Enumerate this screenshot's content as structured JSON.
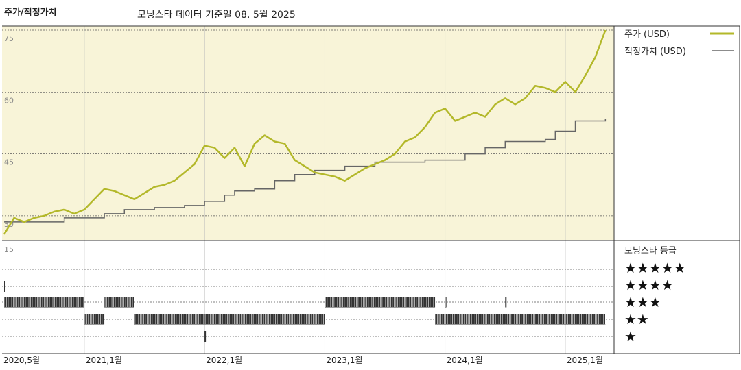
{
  "header": {
    "title": "주가/적정가치",
    "subtitle": "모닝스타 데이터 기준일 08. 5월 2025"
  },
  "colors": {
    "panel_bg": "#f8f4d8",
    "price": "#b3b82a",
    "fair": "#666666",
    "grid_dash": "#555555",
    "grid_solid": "#bbbbbb",
    "bars": "#333333"
  },
  "chart_data": [
    {
      "type": "line",
      "ylim": [
        24,
        76
      ],
      "y_ticks": [
        75,
        60,
        45,
        30
      ],
      "x_ticks": [
        "2020,5월",
        "2021,1월",
        "2022,1월",
        "2023,1월",
        "2024,1월",
        "2025,1월"
      ],
      "x_range": [
        "2020-05",
        "2025-05"
      ],
      "legend_position": "right",
      "series": [
        {
          "name": "주가 (USD)",
          "x": [
            "2020-05",
            "2020-06",
            "2020-07",
            "2020-08",
            "2020-09",
            "2020-10",
            "2020-11",
            "2020-12",
            "2021-01",
            "2021-02",
            "2021-03",
            "2021-04",
            "2021-05",
            "2021-06",
            "2021-07",
            "2021-08",
            "2021-09",
            "2021-10",
            "2021-11",
            "2021-12",
            "2022-01",
            "2022-02",
            "2022-03",
            "2022-04",
            "2022-05",
            "2022-06",
            "2022-07",
            "2022-08",
            "2022-09",
            "2022-10",
            "2022-11",
            "2022-12",
            "2023-01",
            "2023-02",
            "2023-03",
            "2023-04",
            "2023-05",
            "2023-06",
            "2023-07",
            "2023-08",
            "2023-09",
            "2023-10",
            "2023-11",
            "2023-12",
            "2024-01",
            "2024-02",
            "2024-03",
            "2024-04",
            "2024-05",
            "2024-06",
            "2024-07",
            "2024-08",
            "2024-09",
            "2024-10",
            "2024-11",
            "2024-12",
            "2025-01",
            "2025-02",
            "2025-03",
            "2025-04",
            "2025-05"
          ],
          "values": [
            25.5,
            29.5,
            28.5,
            29.5,
            30.0,
            31.0,
            31.5,
            30.5,
            31.5,
            34.0,
            36.5,
            36.0,
            35.0,
            34.0,
            35.5,
            37.0,
            37.5,
            38.5,
            40.5,
            42.5,
            47.0,
            46.5,
            44.0,
            46.5,
            42.0,
            47.5,
            49.5,
            48.0,
            47.5,
            43.5,
            42.0,
            40.5,
            40.0,
            39.5,
            38.5,
            40.0,
            41.5,
            42.5,
            43.5,
            45.0,
            48.0,
            49.0,
            51.5,
            55.0,
            56.0,
            53.0,
            54.0,
            55.0,
            54.0,
            57.0,
            58.5,
            57.0,
            58.5,
            61.5,
            61.0,
            60.0,
            62.5,
            60.0,
            64.0,
            68.5,
            75.0
          ]
        },
        {
          "name": "적정가치 (USD)",
          "x": [
            "2020-05",
            "2020-07",
            "2020-11",
            "2021-01",
            "2021-03",
            "2021-05",
            "2021-08",
            "2021-11",
            "2022-01",
            "2022-03",
            "2022-04",
            "2022-06",
            "2022-08",
            "2022-10",
            "2022-12",
            "2023-01",
            "2023-03",
            "2023-06",
            "2023-08",
            "2023-11",
            "2024-01",
            "2024-03",
            "2024-05",
            "2024-07",
            "2024-09",
            "2024-11",
            "2024-12",
            "2025-02",
            "2025-05"
          ],
          "values": [
            28.5,
            28.5,
            29.5,
            29.5,
            30.5,
            31.5,
            32.0,
            32.5,
            33.5,
            35.0,
            36.0,
            36.5,
            38.5,
            40.0,
            41.0,
            41.0,
            42.0,
            43.0,
            43.0,
            43.5,
            43.5,
            45.0,
            46.5,
            48.0,
            48.0,
            48.5,
            50.5,
            53.0,
            53.5
          ]
        }
      ]
    },
    {
      "type": "bar",
      "title": "모닝스타 등급",
      "y_ticks": [
        15
      ],
      "categories": [
        "★★★★★",
        "★★★★",
        "★★★",
        "★★",
        "★"
      ],
      "rating_periods": [
        {
          "rating": 4,
          "from": "2020-05",
          "to": "2020-05"
        },
        {
          "rating": 3,
          "from": "2020-05",
          "to": "2021-01"
        },
        {
          "rating": 2,
          "from": "2021-01",
          "to": "2021-03"
        },
        {
          "rating": 3,
          "from": "2021-03",
          "to": "2021-06"
        },
        {
          "rating": 2,
          "from": "2021-06",
          "to": "2022-01"
        },
        {
          "rating": 1,
          "from": "2022-01",
          "to": "2022-01"
        },
        {
          "rating": 2,
          "from": "2022-01",
          "to": "2023-01"
        },
        {
          "rating": 3,
          "from": "2023-01",
          "to": "2023-12"
        },
        {
          "rating": 2,
          "from": "2023-12",
          "to": "2024-01"
        },
        {
          "rating": 3,
          "from": "2024-01",
          "to": "2024-01"
        },
        {
          "rating": 2,
          "from": "2024-01",
          "to": "2024-07"
        },
        {
          "rating": 3,
          "from": "2024-07",
          "to": "2024-07"
        },
        {
          "rating": 2,
          "from": "2024-07",
          "to": "2025-05"
        }
      ]
    }
  ]
}
